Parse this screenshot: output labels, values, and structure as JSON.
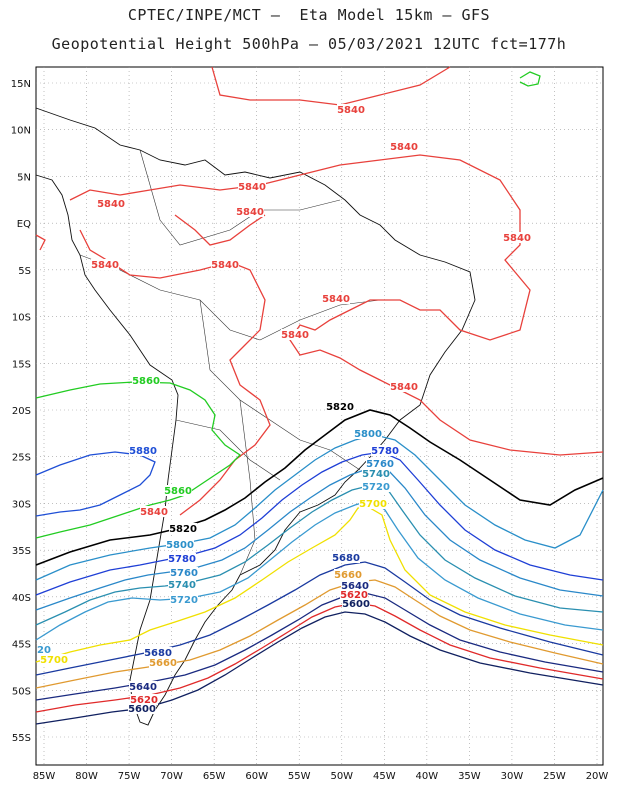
{
  "header": {
    "line1": "CPTEC/INPE/MCT –  Eta Model 15km – GFS",
    "line2": "Geopotential Height 500hPa – 05/03/2021 12UTC fct=177h"
  },
  "axes": {
    "lon_labels": [
      "85W",
      "80W",
      "75W",
      "70W",
      "65W",
      "60W",
      "55W",
      "50W",
      "45W",
      "40W",
      "35W",
      "30W",
      "25W",
      "20W"
    ],
    "lat_labels": [
      "15N",
      "10N",
      "5N",
      "EQ",
      "5S",
      "10S",
      "15S",
      "20S",
      "25S",
      "30S",
      "35S",
      "40S",
      "45S",
      "50S",
      "55S"
    ]
  },
  "chart_data": {
    "type": "contour",
    "variable": "Geopotential Height 500hPa",
    "xlim": [
      -86,
      -20
    ],
    "ylim": [
      -58,
      16
    ],
    "contours": [
      {
        "level": 5840,
        "color": "#e8413c",
        "labels": [
          "5840",
          "5840",
          "5840",
          "5840",
          "5840",
          "5840",
          "5840",
          "5840",
          "5840",
          "5840",
          "5840",
          "5840"
        ]
      },
      {
        "level": 5860,
        "color": "#22cc22",
        "labels": [
          "5860",
          "5860"
        ]
      },
      {
        "level": 5880,
        "color": "#1f4fd6",
        "labels": [
          "5880"
        ]
      },
      {
        "level": 5820,
        "color": "#000000",
        "labels": [
          "5820",
          "5820"
        ]
      },
      {
        "level": 5800,
        "color": "#2a8fc9",
        "labels": [
          "5800",
          "5800"
        ]
      },
      {
        "level": 5780,
        "color": "#1f3fd6",
        "labels": [
          "5780",
          "5780"
        ]
      },
      {
        "level": 5760,
        "color": "#2a88c9",
        "labels": [
          "5760",
          "5760"
        ]
      },
      {
        "level": 5740,
        "color": "#2a8fb0",
        "labels": [
          "5740",
          "5740"
        ]
      },
      {
        "level": 5720,
        "color": "#3a9ad0",
        "labels": [
          "5720",
          "5720",
          "20"
        ]
      },
      {
        "level": 5700,
        "color": "#f0e000",
        "labels": [
          "5700",
          "5700"
        ]
      },
      {
        "level": 5680,
        "color": "#1a3aa0",
        "labels": [
          "5680",
          "5680"
        ]
      },
      {
        "level": 5660,
        "color": "#e09a30",
        "labels": [
          "5660",
          "5660"
        ]
      },
      {
        "level": 5640,
        "color": "#1a2a80",
        "labels": [
          "5640",
          "5640"
        ]
      },
      {
        "level": 5620,
        "color": "#e02a2a",
        "labels": [
          "5620",
          "5620"
        ]
      },
      {
        "level": 5600,
        "color": "#102060",
        "labels": [
          "5600",
          "5600"
        ]
      }
    ]
  }
}
